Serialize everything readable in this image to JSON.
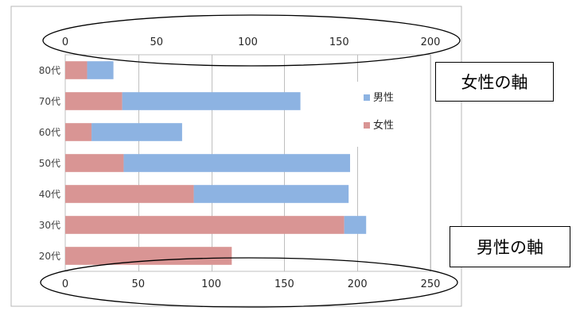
{
  "chart_data": {
    "type": "bar",
    "orientation": "horizontal",
    "stacked": true,
    "categories": [
      "80代",
      "70代",
      "60代",
      "50代",
      "40代",
      "30代",
      "20代"
    ],
    "series": [
      {
        "name": "女性",
        "color": "#d99594",
        "values": [
          15,
          39,
          18,
          40,
          88,
          191,
          114
        ]
      },
      {
        "name": "男性",
        "color": "#8db3e2",
        "values": [
          18,
          122,
          62,
          155,
          106,
          15,
          0
        ]
      }
    ],
    "top_axis": {
      "ticks": [
        0,
        50,
        100,
        150,
        200
      ],
      "range": [
        0,
        200
      ]
    },
    "bottom_axis": {
      "ticks": [
        0,
        50,
        100,
        150,
        200,
        250
      ],
      "range": [
        0,
        250
      ]
    },
    "grid": true,
    "legend": {
      "position": "right",
      "entries": [
        "男性",
        "女性"
      ]
    },
    "annotations": {
      "female_axis": "女性の軸",
      "male_axis": "男性の軸"
    }
  }
}
